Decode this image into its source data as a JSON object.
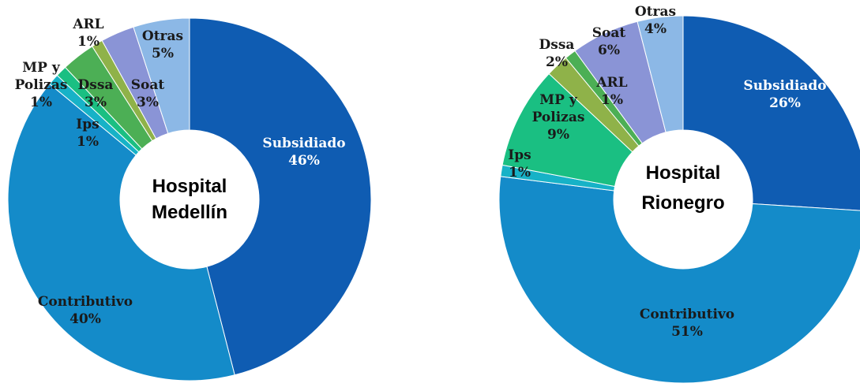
{
  "chart_data": [
    {
      "type": "pie",
      "title": "Hospital Medellín",
      "center_lines": [
        "Hospital",
        "Medellín"
      ],
      "slices": [
        {
          "label": "Subsidiado",
          "label_lines": [
            "Subsidiado"
          ],
          "value": 46,
          "display": "46%",
          "color": "#0f5cb2",
          "text_color": "#ffffff"
        },
        {
          "label": "Contributivo",
          "label_lines": [
            "Contributivo"
          ],
          "value": 40,
          "display": "40%",
          "color": "#148bc9",
          "text_color": "#1a1a1a"
        },
        {
          "label": "Ips",
          "label_lines": [
            "Ips"
          ],
          "value": 1,
          "display": "1%",
          "color": "#17b2c7",
          "text_color": "#1a1a1a"
        },
        {
          "label": "MP y Polizas",
          "label_lines": [
            "MP y",
            "Polizas"
          ],
          "value": 1,
          "display": "1%",
          "color": "#1abf82",
          "text_color": "#1a1a1a"
        },
        {
          "label": "Dssa",
          "label_lines": [
            "Dssa"
          ],
          "value": 3,
          "display": "3%",
          "color": "#4caf55",
          "text_color": "#1a1a1a"
        },
        {
          "label": "ARL",
          "label_lines": [
            "ARL"
          ],
          "value": 1,
          "display": "1%",
          "color": "#8fb249",
          "text_color": "#1a1a1a"
        },
        {
          "label": "Soat",
          "label_lines": [
            "Soat"
          ],
          "value": 3,
          "display": "3%",
          "color": "#8a94d6",
          "text_color": "#1a1a1a"
        },
        {
          "label": "Otras",
          "label_lines": [
            "Otras"
          ],
          "value": 5,
          "display": "5%",
          "color": "#8cb8e6",
          "text_color": "#1a1a1a"
        }
      ]
    },
    {
      "type": "pie",
      "title": "Hospital Rionegro",
      "center_lines": [
        "Hospital",
        "Rionegro"
      ],
      "slices": [
        {
          "label": "Subsidiado",
          "label_lines": [
            "Subsidiado"
          ],
          "value": 26,
          "display": "26%",
          "color": "#0f5cb2",
          "text_color": "#ffffff"
        },
        {
          "label": "Contributivo",
          "label_lines": [
            "Contributivo"
          ],
          "value": 51,
          "display": "51%",
          "color": "#148bc9",
          "text_color": "#1a1a1a"
        },
        {
          "label": "Ips",
          "label_lines": [
            "Ips"
          ],
          "value": 1,
          "display": "1%",
          "color": "#17b2c7",
          "text_color": "#1a1a1a"
        },
        {
          "label": "MP y Polizas",
          "label_lines": [
            "MP y",
            "Polizas"
          ],
          "value": 9,
          "display": "9%",
          "color": "#1abf82",
          "text_color": "#1a1a1a"
        },
        {
          "label": "Dssa",
          "label_lines": [
            "Dssa"
          ],
          "value": 2,
          "display": "2%",
          "color": "#8fb249",
          "text_color": "#1a1a1a"
        },
        {
          "label": "ARL",
          "label_lines": [
            "ARL"
          ],
          "value": 1,
          "display": "1%",
          "color": "#4caf55",
          "text_color": "#1a1a1a"
        },
        {
          "label": "Soat",
          "label_lines": [
            "Soat"
          ],
          "value": 6,
          "display": "6%",
          "color": "#8a94d6",
          "text_color": "#1a1a1a"
        },
        {
          "label": "Otras",
          "label_lines": [
            "Otras"
          ],
          "value": 4,
          "display": "4%",
          "color": "#8cb8e6",
          "text_color": "#1a1a1a"
        }
      ]
    }
  ]
}
